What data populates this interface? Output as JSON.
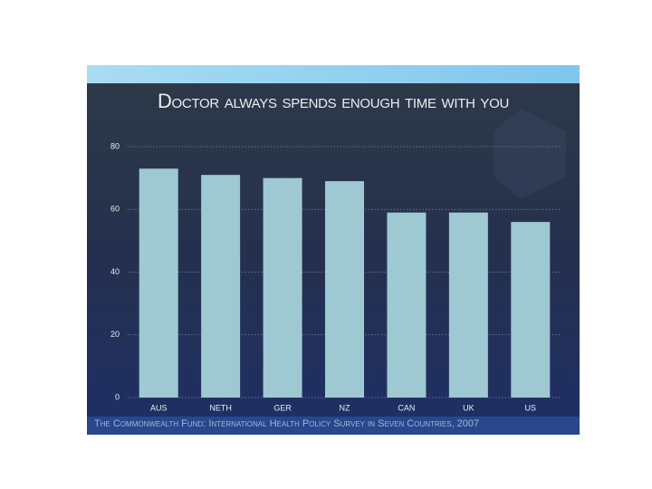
{
  "chart_data": {
    "type": "bar",
    "title": "Doctor always spends enough time with you",
    "source": "The Commonwealth Fund: International Health Policy Survey in Seven Countries, 2007",
    "categories": [
      "AUS",
      "NETH",
      "GER",
      "NZ",
      "CAN",
      "UK",
      "US"
    ],
    "values": [
      73,
      71,
      70,
      69,
      59,
      59,
      56
    ],
    "color": "#9ec9d2",
    "ylim": [
      0,
      80
    ],
    "yticks": [
      0,
      20,
      40,
      60,
      80
    ],
    "grid": true
  }
}
